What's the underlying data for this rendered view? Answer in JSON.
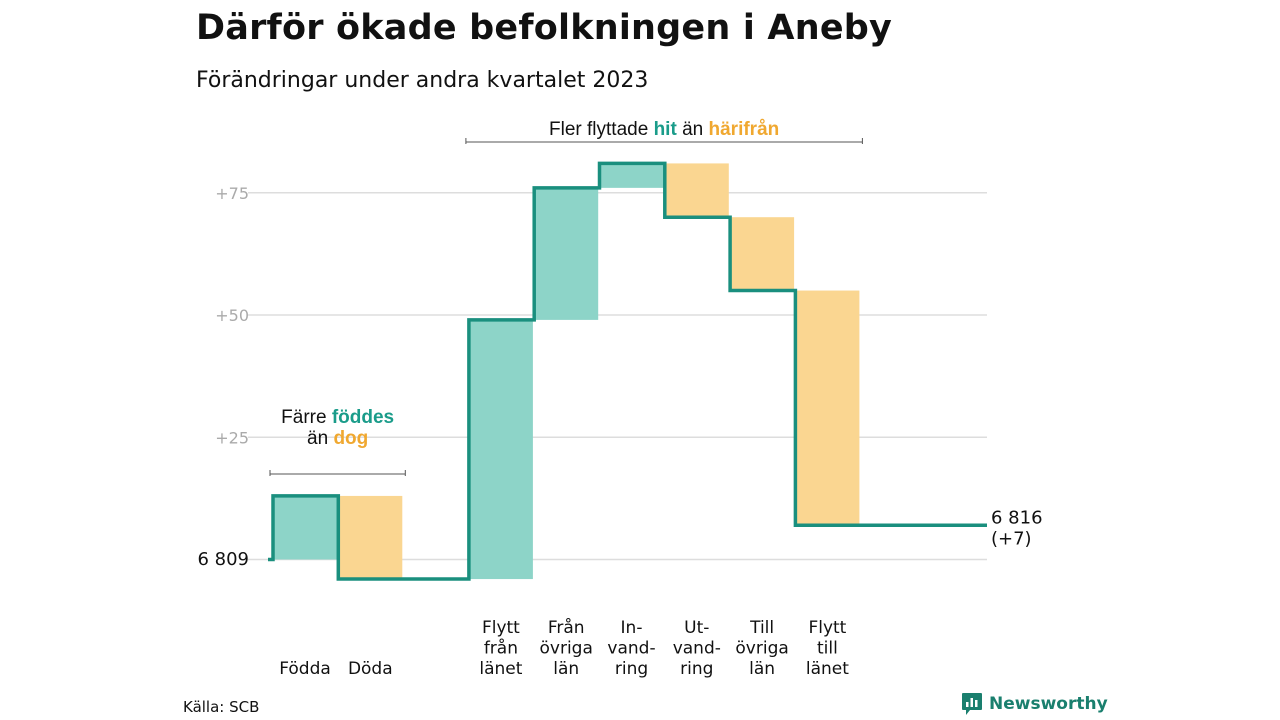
{
  "header": {
    "title": "Därför ökade befolkningen i Aneby",
    "subtitle": "Förändringar under andra kvartalet 2023"
  },
  "footer": {
    "source": "Källa: SCB",
    "brand": "Newsworthy"
  },
  "colors": {
    "increase": "#8dd4c8",
    "decrease": "#fad691",
    "line": "#1a8f7e",
    "accent_in": "#1a9c8a",
    "accent_out": "#f0a830",
    "grid": "#dddddd",
    "tick": "#aaaaaa"
  },
  "chart_data": {
    "type": "waterfall",
    "start_label": "6  809",
    "end_label": [
      "6 816",
      "(+7)"
    ],
    "y_ticks": [
      {
        "value": 25,
        "label": "+25"
      },
      {
        "value": 50,
        "label": "+50"
      },
      {
        "value": 75,
        "label": "+75"
      }
    ],
    "steps": [
      {
        "label": [
          "Födda"
        ],
        "change": 13
      },
      {
        "label": [
          "Döda"
        ],
        "change": -17
      },
      {
        "label": [],
        "change": 0
      },
      {
        "label": [
          "Flytt",
          "från",
          "länet"
        ],
        "change": 53
      },
      {
        "label": [
          "Från",
          "övriga",
          "län"
        ],
        "change": 27
      },
      {
        "label": [
          "In-",
          "vand-",
          "ring"
        ],
        "change": 5
      },
      {
        "label": [
          "Ut-",
          "vand-",
          "ring"
        ],
        "change": -11
      },
      {
        "label": [
          "Till",
          "övriga",
          "län"
        ],
        "change": -15
      },
      {
        "label": [
          "Flytt",
          "till",
          "länet"
        ],
        "change": -48
      },
      {
        "label": [],
        "change": 0
      },
      {
        "label": [],
        "change": 0
      }
    ],
    "annotations": [
      {
        "from": 0,
        "to": 1,
        "lines": [
          [
            {
              "text": "Färre ",
              "style": "plain"
            },
            {
              "text": "föddes",
              "style": "in"
            }
          ],
          [
            {
              "text": "än ",
              "style": "plain"
            },
            {
              "text": "dog",
              "style": "out"
            }
          ]
        ]
      },
      {
        "from": 3,
        "to": 8,
        "lines": [
          [
            {
              "text": "Fler flyttade ",
              "style": "plain"
            },
            {
              "text": "hit",
              "style": "in"
            },
            {
              "text": " än ",
              "style": "plain"
            },
            {
              "text": "härifrån",
              "style": "out"
            }
          ]
        ]
      }
    ]
  }
}
